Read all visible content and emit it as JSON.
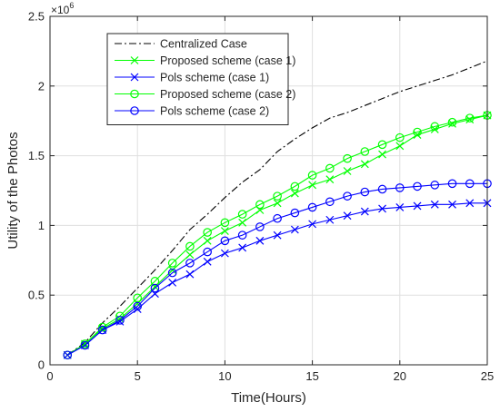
{
  "chart_data": {
    "type": "line",
    "xlabel": "Time(Hours)",
    "ylabel": "Utility of the Photos",
    "xlim": [
      0,
      25
    ],
    "ylim": [
      0,
      2.5
    ],
    "xticks": [
      0,
      5,
      10,
      15,
      20,
      25
    ],
    "xtick_labels": [
      "0",
      "5",
      "10",
      "15",
      "20",
      "25"
    ],
    "yticks": [
      0,
      0.5,
      1,
      1.5,
      2,
      2.5
    ],
    "ytick_labels": [
      "0",
      "0.5",
      "1",
      "1.5",
      "2",
      "2.5"
    ],
    "y_multiplier_base": "×10",
    "y_multiplier_exp": "6",
    "grid": true,
    "legend_position": "top-left",
    "x": [
      1,
      2,
      3,
      4,
      5,
      6,
      7,
      8,
      9,
      10,
      11,
      12,
      13,
      14,
      15,
      16,
      17,
      18,
      19,
      20,
      21,
      22,
      23,
      24,
      25
    ],
    "series": [
      {
        "name": "Centralized Case",
        "color": "#000000",
        "line": "dashdot",
        "marker": "none",
        "values": [
          0.07,
          0.16,
          0.3,
          0.42,
          0.55,
          0.68,
          0.82,
          0.97,
          1.08,
          1.2,
          1.31,
          1.4,
          1.53,
          1.62,
          1.7,
          1.77,
          1.81,
          1.86,
          1.91,
          1.96,
          2.0,
          2.04,
          2.08,
          2.13,
          2.18
        ]
      },
      {
        "name": "Proposed scheme (case 1)",
        "color": "#00ff00",
        "line": "solid",
        "marker": "x",
        "values": [
          0.07,
          0.15,
          0.26,
          0.33,
          0.44,
          0.56,
          0.68,
          0.79,
          0.89,
          0.96,
          1.02,
          1.11,
          1.16,
          1.23,
          1.29,
          1.33,
          1.39,
          1.44,
          1.51,
          1.57,
          1.65,
          1.69,
          1.73,
          1.76,
          1.79
        ]
      },
      {
        "name": "Pols scheme (case 1)",
        "color": "#0000ff",
        "line": "solid",
        "marker": "x",
        "values": [
          0.07,
          0.14,
          0.25,
          0.31,
          0.4,
          0.51,
          0.59,
          0.65,
          0.74,
          0.8,
          0.84,
          0.89,
          0.93,
          0.97,
          1.01,
          1.04,
          1.07,
          1.1,
          1.12,
          1.13,
          1.14,
          1.15,
          1.15,
          1.16,
          1.16
        ]
      },
      {
        "name": "Proposed scheme (case 2)",
        "color": "#00ff00",
        "line": "solid",
        "marker": "o",
        "values": [
          0.07,
          0.15,
          0.27,
          0.35,
          0.48,
          0.6,
          0.73,
          0.85,
          0.95,
          1.02,
          1.08,
          1.15,
          1.21,
          1.28,
          1.36,
          1.41,
          1.48,
          1.53,
          1.58,
          1.63,
          1.67,
          1.71,
          1.74,
          1.77,
          1.79
        ]
      },
      {
        "name": "Pols scheme (case 2)",
        "color": "#0000ff",
        "line": "solid",
        "marker": "o",
        "values": [
          0.07,
          0.14,
          0.25,
          0.32,
          0.42,
          0.55,
          0.66,
          0.73,
          0.81,
          0.89,
          0.93,
          0.99,
          1.05,
          1.09,
          1.13,
          1.17,
          1.21,
          1.24,
          1.26,
          1.27,
          1.28,
          1.29,
          1.3,
          1.3,
          1.3
        ]
      }
    ]
  }
}
